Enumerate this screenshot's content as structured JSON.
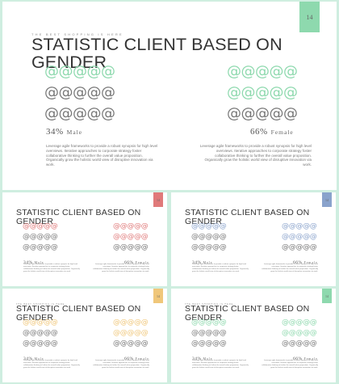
{
  "slides": [
    {
      "id": "main",
      "number": "14",
      "eyebrow": "THE BEST SHOPPING IS HERE",
      "title": "STATISTIC CLIENT BASED ON GENDER",
      "accent": "#8ed9ae",
      "left": {
        "percent": "34%",
        "gender": "Male",
        "highlight_rows": 1
      },
      "right": {
        "percent": "66%",
        "gender": "Female",
        "highlight_rows": 2
      },
      "paragraph": "Leverage agile frameworks to provide a robust synopsis for high level overviews. Iterative approaches to corporate strategy foster collaborative thinking to further the overall value proposition. Organically grow the holistic world view of disruptive innovation via work."
    },
    {
      "id": "red",
      "number": "14",
      "eyebrow": "",
      "title": "STATISTIC CLIENT BASED ON GENDER",
      "accent": "#e07a7a",
      "left": {
        "percent": "34%",
        "gender": "Male",
        "highlight_rows": 1
      },
      "right": {
        "percent": "66%",
        "gender": "Female",
        "highlight_rows": 2
      },
      "paragraph": "Leverage agile frameworks to provide a robust synopsis for high level overviews. Iterative approaches to corporate strategy foster collaborative thinking to further the overall value proposition. Organically grow the holistic world view of disruptive innovation via work."
    },
    {
      "id": "blue",
      "number": "14",
      "eyebrow": "",
      "title": "STATISTIC CLIENT BASED ON GENDER",
      "accent": "#8aa3cc",
      "left": {
        "percent": "34%",
        "gender": "Male",
        "highlight_rows": 1
      },
      "right": {
        "percent": "66%",
        "gender": "Female",
        "highlight_rows": 2
      },
      "paragraph": "Leverage agile frameworks to provide a robust synopsis for high level overviews. Iterative approaches to corporate strategy foster collaborative thinking to further the overall value proposition. Organically grow the holistic world view of disruptive innovation via work."
    },
    {
      "id": "yellow",
      "number": "14",
      "eyebrow": "THE BEST SHOPPING IS HERE",
      "title": "STATISTIC CLIENT BASED ON GENDER",
      "accent": "#f0c77a",
      "left": {
        "percent": "34%",
        "gender": "Male",
        "highlight_rows": 1
      },
      "right": {
        "percent": "66%",
        "gender": "Female",
        "highlight_rows": 2
      },
      "paragraph": "Leverage agile frameworks to provide a robust synopsis for high level overviews. Iterative approaches to corporate strategy foster collaborative thinking to further the overall value proposition. Organically grow the holistic world view of disruptive innovation via work."
    },
    {
      "id": "green",
      "number": "14",
      "eyebrow": "THE BEST SHOPPING IS HERE",
      "title": "STATISTIC CLIENT BASED ON GENDER",
      "accent": "#8ed9ae",
      "left": {
        "percent": "34%",
        "gender": "Male",
        "highlight_rows": 1
      },
      "right": {
        "percent": "66%",
        "gender": "Female",
        "highlight_rows": 2
      },
      "paragraph": "Leverage agile frameworks to provide a robust synopsis for high level overviews. Iterative approaches to corporate strategy foster collaborative thinking to further the overall value proposition. Organically grow the holistic world view of disruptive innovation via work."
    }
  ],
  "icon": {
    "symbol": "@",
    "name": "at-person-icon",
    "per_row": 5,
    "rows": 3,
    "neutral_color": "#777777"
  }
}
